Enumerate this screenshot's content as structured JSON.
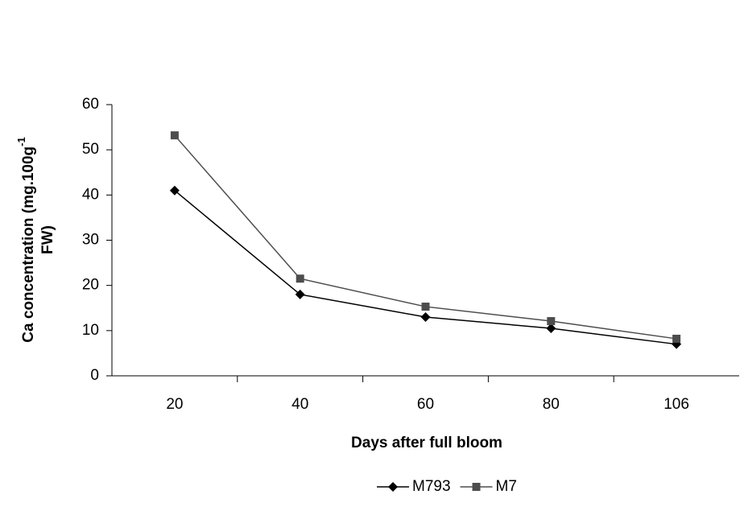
{
  "chart_data": {
    "type": "line",
    "x_label": "Days after full bloom",
    "y_label": [
      "Ca concentration (mg.100g",
      "-1",
      "FW)"
    ],
    "categories": [
      "20",
      "40",
      "60",
      "80",
      "106"
    ],
    "series": [
      {
        "name": "M793",
        "color": "#000000",
        "marker": "diamond",
        "values": [
          41,
          18,
          13,
          10.5,
          7
        ]
      },
      {
        "name": "M7",
        "color": "#4d4d4d",
        "marker": "square",
        "values": [
          53.2,
          21.5,
          15.3,
          12.1,
          8.2
        ]
      }
    ],
    "ylim": [
      0,
      60
    ],
    "yticks": [
      0,
      10,
      20,
      30,
      40,
      50,
      60
    ],
    "grid": false,
    "legend": "bottom"
  }
}
